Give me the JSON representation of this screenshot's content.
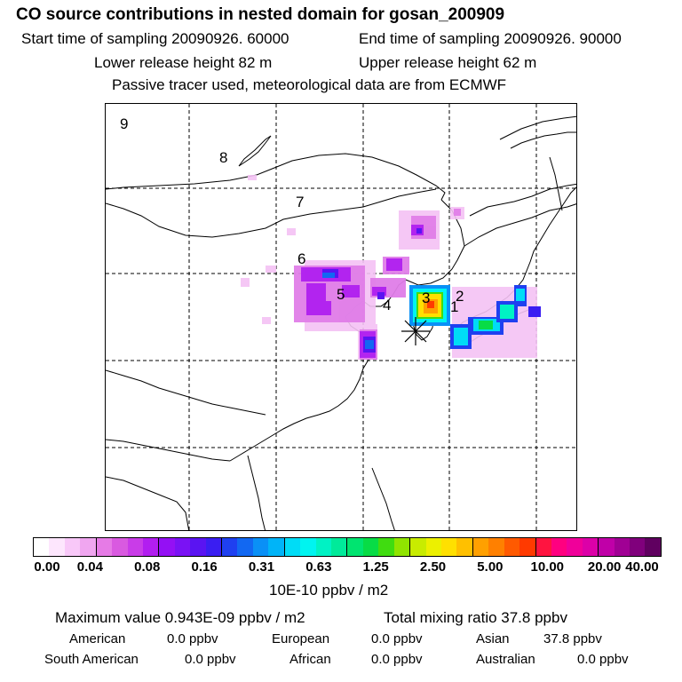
{
  "header": {
    "title": "CO  source contributions in nested domain for gosan_200909",
    "sampling_start": "Start time of sampling 20090926. 60000",
    "sampling_end": "End time of sampling 20090926. 90000",
    "release_lower": "Lower release height   82 m",
    "release_upper": "Upper release height   62 m",
    "tracer_note": "Passive tracer used, meteorological data are from ECMWF"
  },
  "map": {
    "region_labels": [
      "9",
      "8",
      "7",
      "6",
      "5",
      "4",
      "3",
      "2",
      "1"
    ],
    "receptor_marker": "asterisk-icon"
  },
  "legend": {
    "ticks": [
      "0.00",
      "0.04",
      "0.08",
      "0.16",
      "0.31",
      "0.63",
      "1.25",
      "2.50",
      "5.00",
      "10.00",
      "20.00",
      "40.00"
    ],
    "unit": "10E-10 ppbv / m2",
    "colors": [
      "#ffffff",
      "#fde6fd",
      "#f8c8f8",
      "#f0a6f0",
      "#e67be6",
      "#d95ae0",
      "#c93ce8",
      "#b21ef0",
      "#9410f4",
      "#7a12f4",
      "#5a14f2",
      "#3a1ef2",
      "#1f40f0",
      "#1268f2",
      "#0a90f6",
      "#00b4f8",
      "#00dcf6",
      "#00f4f0",
      "#00f2c4",
      "#00ea9a",
      "#00e470",
      "#08dc46",
      "#40dc10",
      "#90e400",
      "#c8ec00",
      "#ecf000",
      "#ffe000",
      "#ffc000",
      "#ffa000",
      "#ff8000",
      "#ff5a00",
      "#ff3a00",
      "#ff1440",
      "#ff0080",
      "#f0009a",
      "#dc00a8",
      "#c000a8",
      "#a00094",
      "#80007c",
      "#600060"
    ]
  },
  "summary": {
    "max_value": "Maximum value  0.943E-09 ppbv / m2",
    "total_mixing": "Total mixing ratio      37.8 ppbv"
  },
  "regions": [
    {
      "name": "American",
      "value": "0.0 ppbv"
    },
    {
      "name": "European",
      "value": "0.0 ppbv"
    },
    {
      "name": "Asian",
      "value": "37.8 ppbv"
    },
    {
      "name": "South American",
      "value": "0.0 ppbv"
    },
    {
      "name": "African",
      "value": "0.0 ppbv"
    },
    {
      "name": "Australian",
      "value": "0.0 ppbv"
    }
  ]
}
